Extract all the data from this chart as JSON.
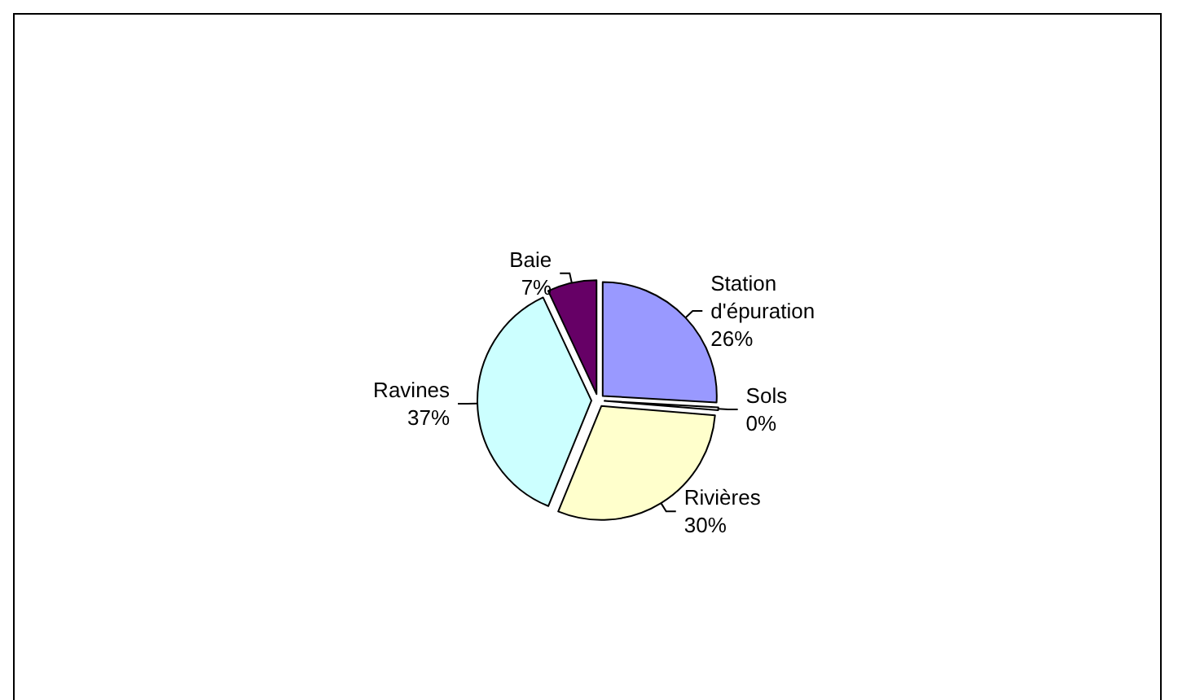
{
  "chart_data": {
    "type": "pie",
    "categories": [
      "Station d'épuration",
      "Sols",
      "Rivières",
      "Ravines",
      "Baie"
    ],
    "values": [
      26,
      0.4,
      30,
      37,
      7
    ],
    "value_labels": [
      "26%",
      "0%",
      "30%",
      "37%",
      "7%"
    ],
    "colors": [
      "#9999ff",
      "#ffffff",
      "#ffffcc",
      "#ccffff",
      "#660066"
    ]
  }
}
